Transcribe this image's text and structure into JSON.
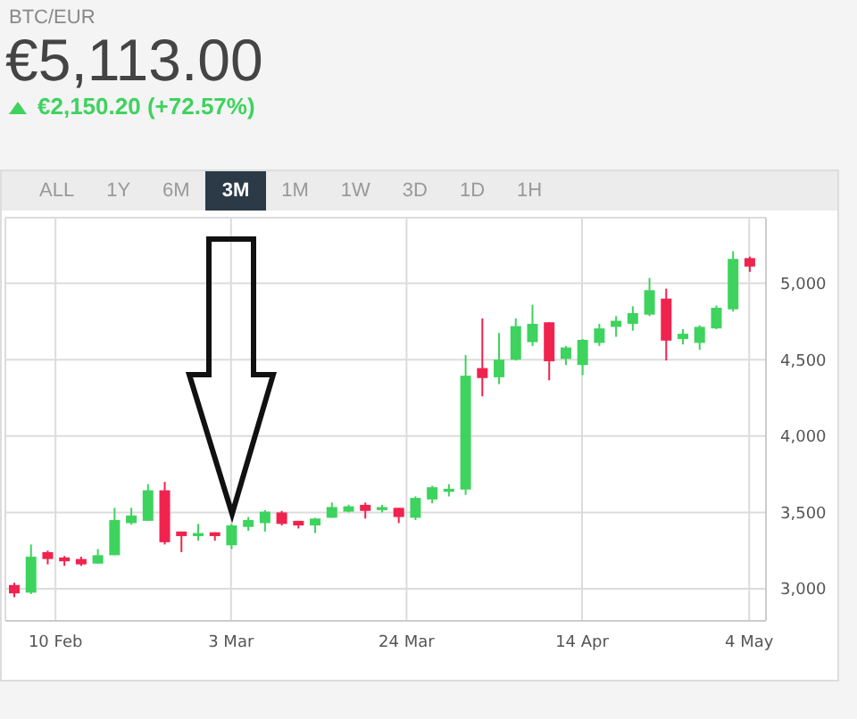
{
  "chart_data": {
    "type": "candlestick",
    "title": "BTC/EUR",
    "subtitle": "€5,113.00",
    "annotations": [
      "€2,150.20 (+72.57%)",
      "ALL",
      "1Y",
      "6M",
      "3M",
      "1M",
      "1W",
      "3D",
      "1D",
      "1H"
    ],
    "x": [
      "--02-05",
      "--02-07",
      "--02-09",
      "--02-11",
      "--02-13",
      "--02-15",
      "--02-17",
      "--02-19",
      "--02-21",
      "--02-23",
      "--02-25",
      "--02-27",
      "--03-01",
      "--03-03",
      "--03-05",
      "--03-07",
      "--03-09",
      "--03-11",
      "--03-13",
      "--03-15",
      "--03-17",
      "--03-19",
      "--03-21",
      "--03-23",
      "--03-25",
      "--03-27",
      "--03-29",
      "--03-31",
      "--04-02",
      "--04-04",
      "--04-06",
      "--04-08",
      "--04-10",
      "--04-12",
      "--04-14",
      "--04-16",
      "--04-18",
      "--04-20",
      "--04-22",
      "--04-24",
      "--04-26",
      "--04-28",
      "--04-30",
      "--05-02",
      "--05-04"
    ],
    "ohlc": [
      [
        3025,
        3040,
        2945,
        2970
      ],
      [
        2975,
        3290,
        2965,
        3210
      ],
      [
        3240,
        3250,
        3160,
        3195
      ],
      [
        3205,
        3215,
        3150,
        3180
      ],
      [
        3195,
        3210,
        3150,
        3160
      ],
      [
        3165,
        3260,
        3165,
        3220
      ],
      [
        3220,
        3530,
        3220,
        3450
      ],
      [
        3430,
        3530,
        3420,
        3480
      ],
      [
        3445,
        3685,
        3445,
        3645
      ],
      [
        3645,
        3700,
        3290,
        3305
      ],
      [
        3375,
        3375,
        3240,
        3345
      ],
      [
        3345,
        3425,
        3315,
        3365
      ],
      [
        3370,
        3370,
        3315,
        3345
      ],
      [
        3285,
        3425,
        3260,
        3415
      ],
      [
        3405,
        3470,
        3380,
        3450
      ],
      [
        3430,
        3515,
        3375,
        3505
      ],
      [
        3500,
        3510,
        3415,
        3425
      ],
      [
        3445,
        3445,
        3395,
        3415
      ],
      [
        3415,
        3465,
        3365,
        3460
      ],
      [
        3465,
        3565,
        3465,
        3535
      ],
      [
        3505,
        3550,
        3500,
        3540
      ],
      [
        3550,
        3565,
        3460,
        3510
      ],
      [
        3515,
        3550,
        3500,
        3535
      ],
      [
        3530,
        3530,
        3430,
        3470
      ],
      [
        3465,
        3605,
        3450,
        3595
      ],
      [
        3585,
        3675,
        3560,
        3665
      ],
      [
        3635,
        3685,
        3605,
        3655
      ],
      [
        3650,
        4530,
        3615,
        4395
      ],
      [
        4445,
        4770,
        4260,
        4380
      ],
      [
        4385,
        4675,
        4340,
        4500
      ],
      [
        4500,
        4770,
        4495,
        4720
      ],
      [
        4615,
        4860,
        4590,
        4735
      ],
      [
        4745,
        4745,
        4365,
        4490
      ],
      [
        4505,
        4590,
        4465,
        4580
      ],
      [
        4465,
        4635,
        4400,
        4630
      ],
      [
        4610,
        4735,
        4590,
        4705
      ],
      [
        4715,
        4785,
        4650,
        4755
      ],
      [
        4735,
        4850,
        4690,
        4805
      ],
      [
        4795,
        5035,
        4785,
        4955
      ],
      [
        4900,
        4965,
        4495,
        4625
      ],
      [
        4635,
        4700,
        4600,
        4670
      ],
      [
        4610,
        4725,
        4565,
        4715
      ],
      [
        4705,
        4855,
        4700,
        4840
      ],
      [
        4830,
        5210,
        4815,
        5160
      ],
      [
        5165,
        5175,
        5075,
        5110
      ]
    ],
    "colors": [
      "#f0234f",
      "#3ed35e",
      "#f0234f",
      "#f0234f",
      "#f0234f",
      "#3ed35e",
      "#3ed35e",
      "#3ed35e",
      "#3ed35e",
      "#f0234f",
      "#f0234f",
      "#3ed35e",
      "#f0234f",
      "#3ed35e",
      "#3ed35e",
      "#3ed35e",
      "#f0234f",
      "#f0234f",
      "#3ed35e",
      "#3ed35e",
      "#3ed35e",
      "#f0234f",
      "#3ed35e",
      "#f0234f",
      "#3ed35e",
      "#3ed35e",
      "#3ed35e",
      "#3ed35e",
      "#f0234f",
      "#3ed35e",
      "#3ed35e",
      "#3ed35e",
      "#f0234f",
      "#3ed35e",
      "#3ed35e",
      "#3ed35e",
      "#3ed35e",
      "#3ed35e",
      "#3ed35e",
      "#f0234f",
      "#3ed35e",
      "#3ed35e",
      "#3ed35e",
      "#3ed35e",
      "#f0234f"
    ],
    "xlim": [
      "--02-04",
      "--05-06"
    ],
    "xticks": [
      {
        "value": "--02-10",
        "label": "10 Feb"
      },
      {
        "value": "--03-03",
        "label": "3 Mar"
      },
      {
        "value": "--03-24",
        "label": "24 Mar"
      },
      {
        "value": "--04-14",
        "label": "14 Apr"
      },
      {
        "value": "--05-04",
        "label": "4 May"
      }
    ],
    "ylim": [
      2790,
      5430
    ],
    "yticks": [
      {
        "value": 3000,
        "label": "3,000"
      },
      {
        "value": 3500,
        "label": "3,500"
      },
      {
        "value": 4000,
        "label": "4,000"
      },
      {
        "value": 4500,
        "label": "4,500"
      },
      {
        "value": 5000,
        "label": "5,000"
      }
    ],
    "grid": true
  }
}
